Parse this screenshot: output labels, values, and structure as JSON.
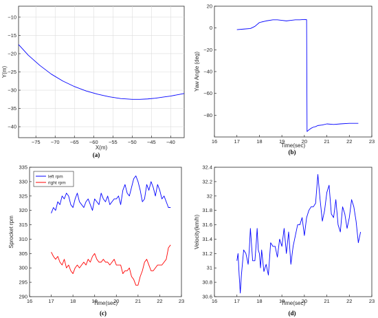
{
  "chart_data": [
    {
      "panel_label": "(a)",
      "type": "line",
      "xlabel": "X(m)",
      "ylabel": "Y(m)",
      "xlim": [
        -79.5,
        -36.5
      ],
      "ylim": [
        -43,
        -7
      ],
      "xticks": [
        -75,
        -70,
        -65,
        -60,
        -55,
        -50,
        -45,
        -40
      ],
      "yticks": [
        -40,
        -35,
        -30,
        -25,
        -20,
        -15,
        -10
      ],
      "grid": true,
      "series": [
        {
          "color": "#0000ff",
          "x": [
            -79.5,
            -77,
            -74,
            -71,
            -68,
            -65,
            -62,
            -59,
            -56,
            -53,
            -50,
            -48,
            -46,
            -44,
            -42,
            -40,
            -38,
            -36.5
          ],
          "y": [
            -17.5,
            -20.4,
            -23.2,
            -25.6,
            -27.5,
            -29.0,
            -30.2,
            -31.1,
            -31.8,
            -32.3,
            -32.5,
            -32.5,
            -32.4,
            -32.2,
            -31.9,
            -31.6,
            -31.2,
            -30.9
          ]
        }
      ]
    },
    {
      "panel_label": "(b)",
      "type": "line",
      "xlabel": "Time(sec)",
      "ylabel": "Yaw Angle (deg)",
      "xlim": [
        16,
        23
      ],
      "ylim": [
        -100,
        20
      ],
      "xticks": [
        16,
        17,
        18,
        19,
        20,
        21,
        22,
        23
      ],
      "yticks": [
        -80,
        -60,
        -40,
        -20,
        0,
        20
      ],
      "grid": false,
      "series": [
        {
          "color": "#0000ff",
          "x": [
            17.0,
            17.3,
            17.6,
            17.8,
            18.0,
            18.3,
            18.6,
            18.8,
            19.0,
            19.2,
            19.4,
            19.6,
            19.8,
            20.0,
            20.1,
            20.12,
            20.2,
            20.3,
            20.4,
            20.5,
            20.6,
            20.8,
            21.0,
            21.3,
            21.6,
            22.0,
            22.4
          ],
          "y": [
            -1.5,
            -1,
            -0.5,
            1.5,
            5,
            6.5,
            7.5,
            7.5,
            7,
            6.5,
            7,
            7.5,
            7.5,
            7.8,
            7.6,
            -95,
            -93.5,
            -92,
            -91,
            -90.5,
            -89.5,
            -89,
            -88,
            -88.5,
            -88,
            -87.5,
            -87.5
          ]
        }
      ]
    },
    {
      "panel_label": "(c)",
      "type": "line",
      "xlabel": "Time(sec)",
      "ylabel": "Sprocket rpm",
      "xlim": [
        16,
        23
      ],
      "ylim": [
        290,
        335
      ],
      "xticks": [
        16,
        17,
        18,
        19,
        20,
        21,
        22,
        23
      ],
      "yticks": [
        290,
        295,
        300,
        305,
        310,
        315,
        320,
        325,
        330,
        335
      ],
      "grid": false,
      "legend": {
        "placement": "top-left"
      },
      "series": [
        {
          "name": "left rpm",
          "color": "#0000ff",
          "x": [
            17.0,
            17.1,
            17.2,
            17.3,
            17.4,
            17.5,
            17.6,
            17.7,
            17.8,
            17.9,
            18.0,
            18.1,
            18.2,
            18.3,
            18.4,
            18.5,
            18.6,
            18.7,
            18.8,
            18.9,
            19.0,
            19.1,
            19.2,
            19.3,
            19.4,
            19.5,
            19.6,
            19.7,
            19.8,
            19.9,
            20.0,
            20.1,
            20.2,
            20.3,
            20.4,
            20.5,
            20.6,
            20.7,
            20.8,
            20.9,
            21.0,
            21.1,
            21.2,
            21.3,
            21.4,
            21.5,
            21.6,
            21.7,
            21.8,
            21.9,
            22.0,
            22.1,
            22.2,
            22.3,
            22.4,
            22.5
          ],
          "y": [
            319,
            321,
            320,
            323,
            322,
            325,
            324,
            326,
            325,
            322,
            321,
            324,
            326,
            323,
            322,
            321,
            323,
            324,
            322,
            320,
            324,
            323,
            322,
            326,
            324,
            323,
            325,
            322,
            323,
            324,
            324,
            325,
            322,
            327,
            329,
            326,
            325,
            328,
            331,
            332,
            330,
            327,
            323,
            324,
            329,
            327,
            330,
            328,
            325,
            329,
            327,
            324,
            325,
            323,
            321,
            321
          ]
        },
        {
          "name": "right rpm",
          "color": "#ff0000",
          "x": [
            17.0,
            17.1,
            17.2,
            17.3,
            17.4,
            17.5,
            17.6,
            17.7,
            17.8,
            17.9,
            18.0,
            18.1,
            18.2,
            18.3,
            18.4,
            18.5,
            18.6,
            18.7,
            18.8,
            18.9,
            19.0,
            19.1,
            19.2,
            19.3,
            19.4,
            19.5,
            19.6,
            19.7,
            19.8,
            19.9,
            20.0,
            20.1,
            20.2,
            20.3,
            20.4,
            20.5,
            20.6,
            20.7,
            20.8,
            20.9,
            21.0,
            21.1,
            21.2,
            21.3,
            21.4,
            21.5,
            21.6,
            21.7,
            21.8,
            21.9,
            22.0,
            22.1,
            22.2,
            22.3,
            22.4,
            22.5
          ],
          "y": [
            305.5,
            304,
            303,
            304,
            302,
            301,
            303,
            300,
            301,
            299,
            298,
            300,
            301,
            300,
            301,
            302,
            301,
            303,
            302,
            304,
            305,
            303,
            302,
            302,
            303,
            302,
            302,
            301,
            302,
            303,
            301,
            301,
            301,
            298,
            299,
            299,
            300,
            297,
            296,
            294,
            294,
            297,
            299,
            302,
            303,
            301,
            299,
            299,
            300,
            301,
            301,
            301,
            302,
            303,
            307,
            308
          ]
        }
      ]
    },
    {
      "panel_label": "(d)",
      "type": "line",
      "xlabel": "Time(sec)",
      "ylabel": "Velocity(km/h)",
      "xlim": [
        16,
        23
      ],
      "ylim": [
        30.6,
        32.4
      ],
      "xticks": [
        16,
        17,
        18,
        19,
        20,
        21,
        22,
        23
      ],
      "yticks": [
        30.6,
        30.8,
        31,
        31.2,
        31.4,
        31.6,
        31.8,
        32,
        32.2,
        32.4
      ],
      "grid": false,
      "series": [
        {
          "color": "#0000ff",
          "x": [
            17.0,
            17.05,
            17.1,
            17.15,
            17.2,
            17.3,
            17.4,
            17.5,
            17.55,
            17.6,
            17.7,
            17.8,
            17.85,
            17.9,
            17.95,
            18.0,
            18.05,
            18.1,
            18.2,
            18.3,
            18.4,
            18.5,
            18.6,
            18.7,
            18.8,
            18.9,
            19.0,
            19.1,
            19.2,
            19.3,
            19.4,
            19.5,
            19.6,
            19.7,
            19.8,
            19.9,
            20.0,
            20.1,
            20.2,
            20.3,
            20.4,
            20.5,
            20.6,
            20.7,
            20.8,
            20.9,
            21.0,
            21.1,
            21.2,
            21.3,
            21.4,
            21.5,
            21.6,
            21.7,
            21.8,
            21.9,
            22.0,
            22.1,
            22.2,
            22.3,
            22.4,
            22.5
          ],
          "y": [
            31.1,
            31.2,
            30.9,
            30.65,
            30.9,
            31.25,
            31.2,
            31.05,
            31.25,
            31.55,
            31.1,
            31.1,
            31.3,
            31.55,
            31.25,
            31.2,
            31.0,
            31.25,
            30.95,
            31.05,
            30.9,
            31.35,
            31.3,
            31.3,
            31.15,
            31.4,
            31.3,
            31.55,
            31.2,
            31.5,
            31.05,
            31.3,
            31.45,
            31.6,
            31.6,
            31.7,
            31.45,
            31.7,
            31.8,
            31.85,
            31.85,
            31.9,
            32.3,
            31.95,
            31.65,
            31.8,
            32.05,
            32.15,
            31.75,
            31.7,
            31.95,
            31.6,
            31.5,
            31.85,
            31.75,
            31.55,
            31.7,
            31.95,
            31.85,
            31.65,
            31.35,
            31.5
          ]
        }
      ]
    }
  ]
}
